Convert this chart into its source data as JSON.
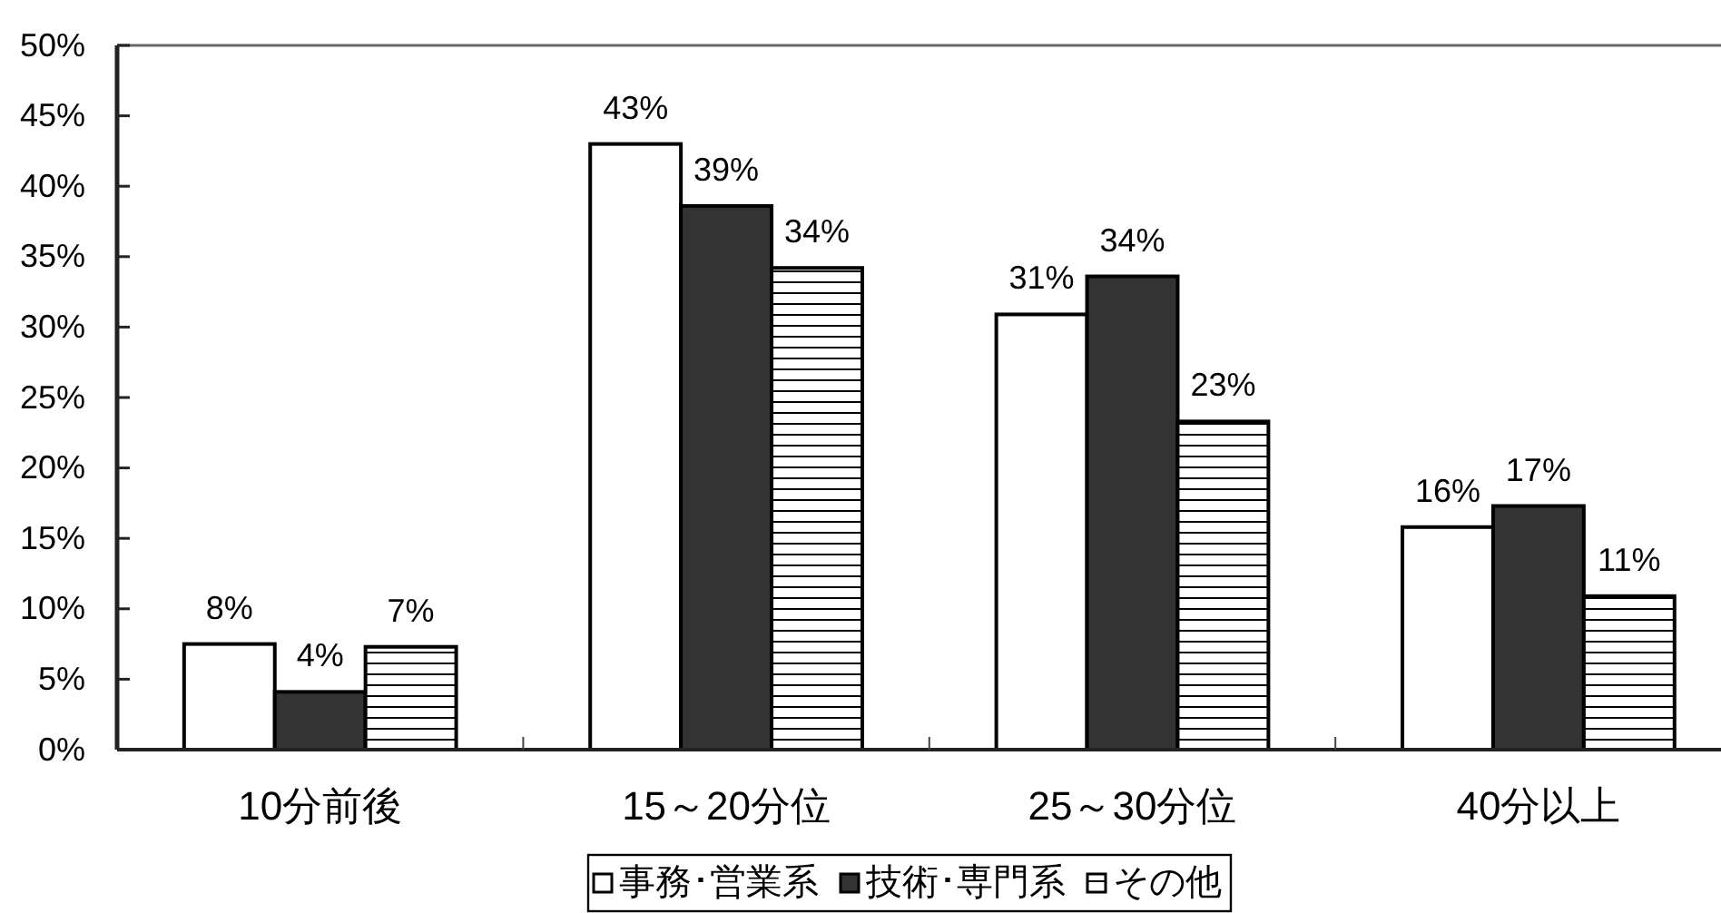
{
  "chart_data": {
    "type": "bar",
    "categories": [
      "10分前後",
      "15～20分位",
      "25～30分位",
      "40分以上"
    ],
    "series": [
      {
        "name": "事務･営業系",
        "color": "#ffffff",
        "values": [
          7.5,
          43.0,
          30.9,
          15.8
        ],
        "value_labels": [
          "8%",
          "43%",
          "31%",
          "16%"
        ]
      },
      {
        "name": "技術･専門系",
        "color": "#333333",
        "values": [
          4.1,
          38.6,
          33.6,
          17.3
        ],
        "value_labels": [
          "4%",
          "39%",
          "34%",
          "17%"
        ]
      },
      {
        "name": "その他",
        "color": "#000000",
        "values": [
          7.3,
          34.2,
          23.3,
          10.9
        ],
        "value_labels": [
          "7%",
          "34%",
          "23%",
          "11%"
        ]
      }
    ],
    "ylim": [
      0,
      50
    ],
    "yticks": [
      {
        "value": 0,
        "label": "0%"
      },
      {
        "value": 5,
        "label": "5%"
      },
      {
        "value": 10,
        "label": "10%"
      },
      {
        "value": 15,
        "label": "15%"
      },
      {
        "value": 20,
        "label": "20%"
      },
      {
        "value": 25,
        "label": "25%"
      },
      {
        "value": 30,
        "label": "30%"
      },
      {
        "value": 35,
        "label": "35%"
      },
      {
        "value": 40,
        "label": "40%"
      },
      {
        "value": 45,
        "label": "45%"
      },
      {
        "value": 50,
        "label": "50%"
      }
    ],
    "legend": "bottom"
  }
}
